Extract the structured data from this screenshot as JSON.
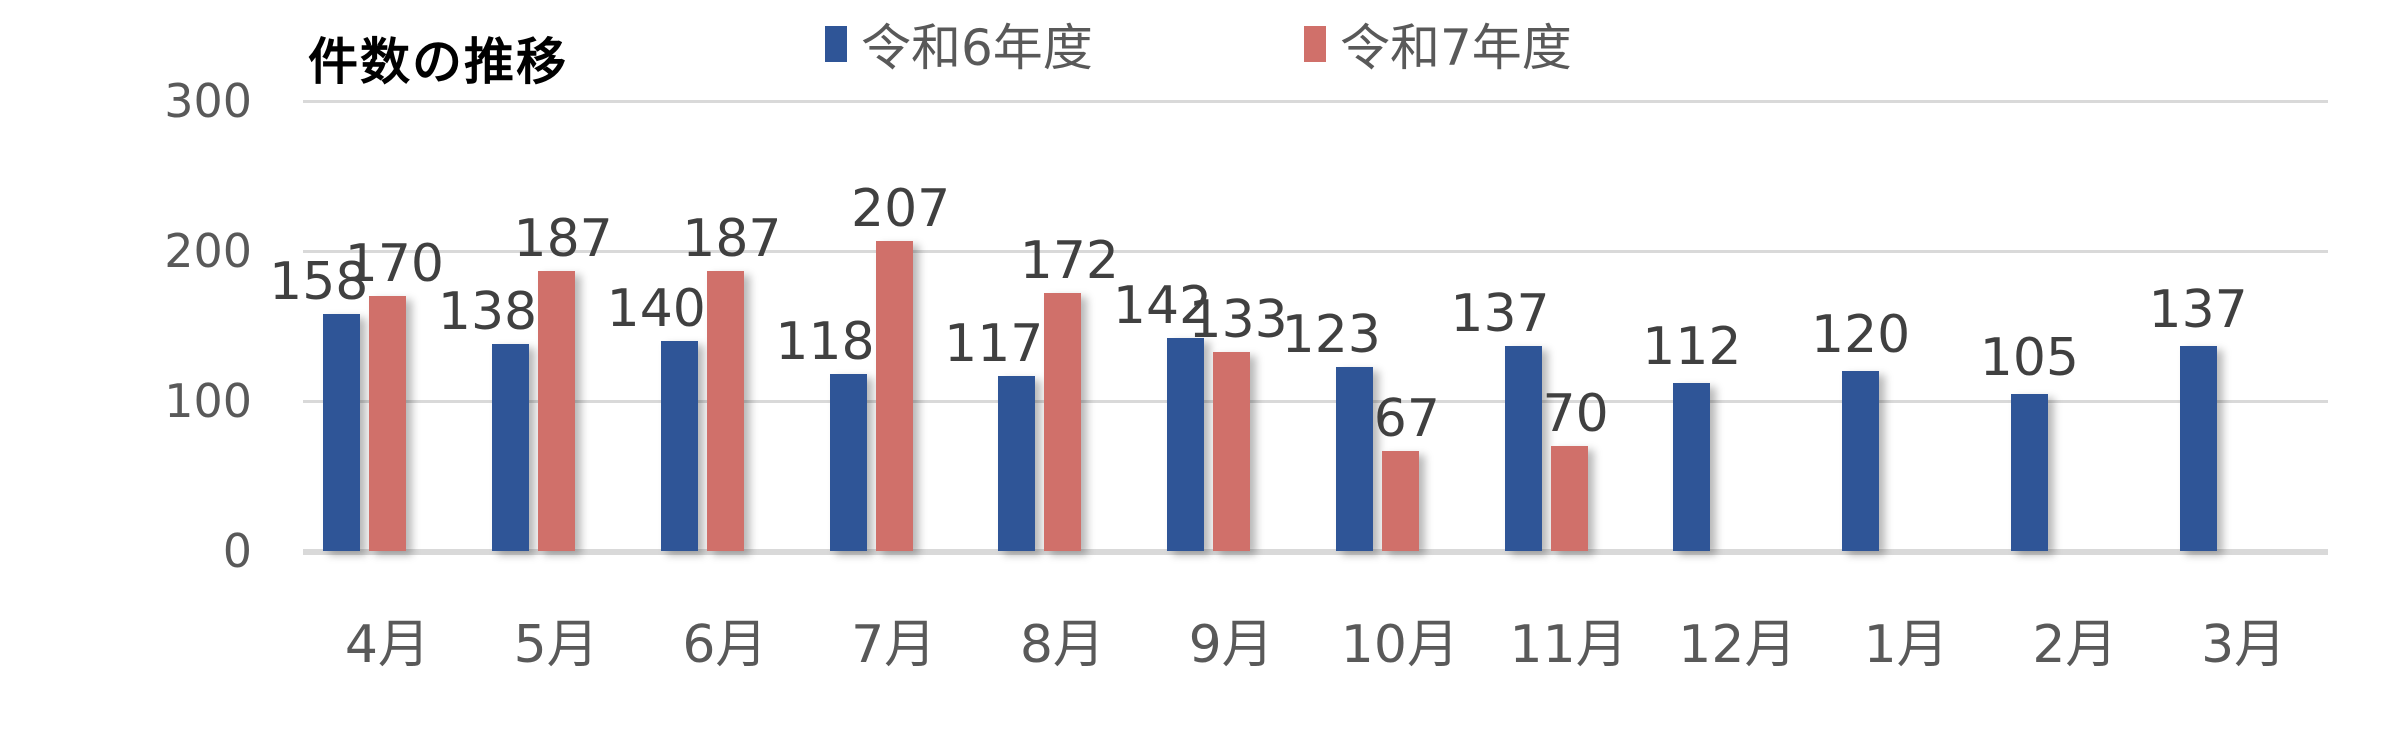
{
  "chart_data": {
    "type": "bar",
    "title": "件数の推移",
    "xlabel": "",
    "ylabel": "",
    "ylim": [
      0,
      300
    ],
    "yticks": [
      0,
      100,
      200,
      300
    ],
    "grid": true,
    "legend_position": "top",
    "categories": [
      "4月",
      "5月",
      "6月",
      "7月",
      "8月",
      "9月",
      "10月",
      "11月",
      "12月",
      "1月",
      "2月",
      "3月"
    ],
    "series": [
      {
        "name": "令和6年度",
        "color": "#2F5597",
        "values": [
          158,
          138,
          140,
          118,
          117,
          142,
          123,
          137,
          112,
          120,
          105,
          137
        ]
      },
      {
        "name": "令和7年度",
        "color": "#D0706A",
        "values": [
          170,
          187,
          187,
          207,
          172,
          133,
          67,
          70,
          null,
          null,
          null,
          null
        ]
      }
    ]
  },
  "legend": [
    {
      "label": "令和6年度",
      "color": "#2F5597"
    },
    {
      "label": "令和7年度",
      "color": "#D0706A"
    }
  ],
  "axis": {
    "y_labels": [
      "300",
      "200",
      "100",
      "0"
    ]
  }
}
